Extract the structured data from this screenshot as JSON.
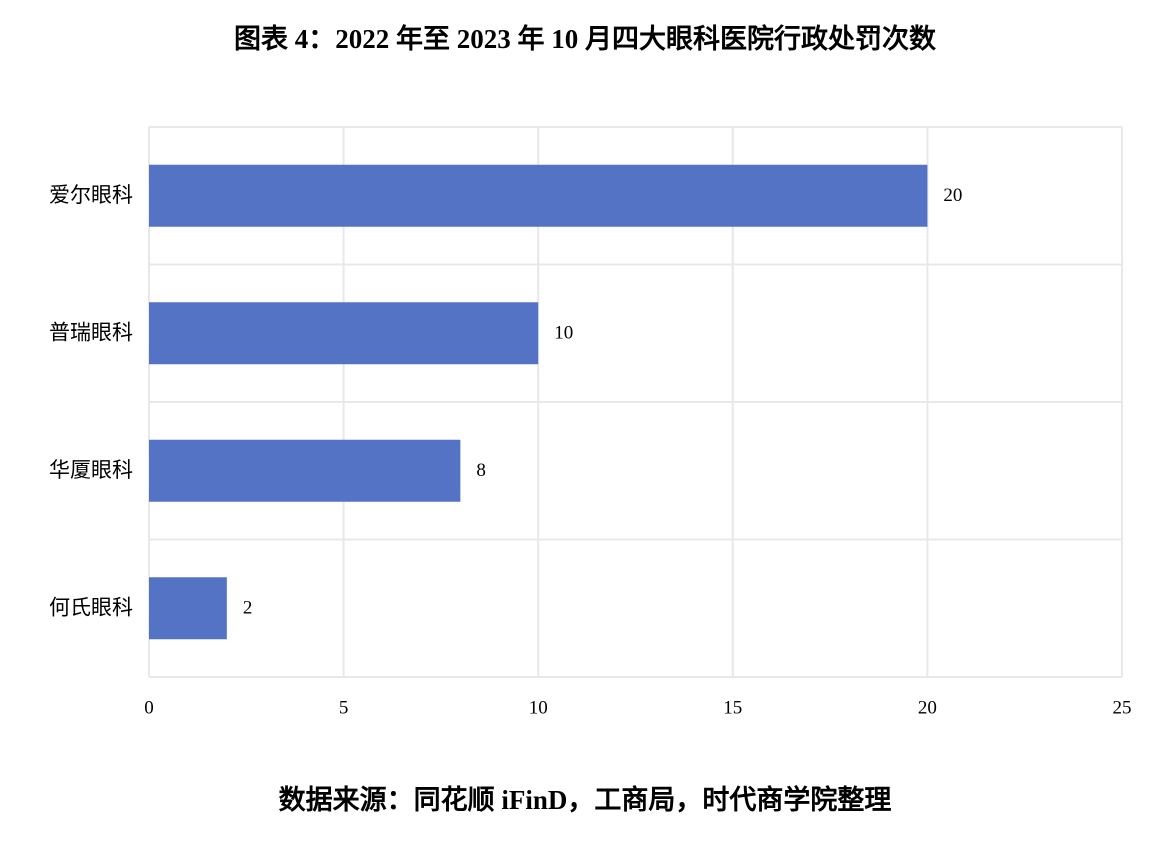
{
  "chart_data": {
    "type": "bar",
    "orientation": "horizontal",
    "title": "图表 4：2022 年至 2023 年 10 月四大眼科医院行政处罚次数",
    "source": "数据来源：同花顺 iFinD，工商局，时代商学院整理",
    "categories": [
      "爱尔眼科",
      "普瑞眼科",
      "华厦眼科",
      "何氏眼科"
    ],
    "values": [
      20,
      10,
      8,
      2
    ],
    "color": "#5473c4",
    "xlim": [
      0,
      25
    ],
    "xticks": [
      0,
      5,
      10,
      15,
      20,
      25
    ],
    "grid": true
  }
}
